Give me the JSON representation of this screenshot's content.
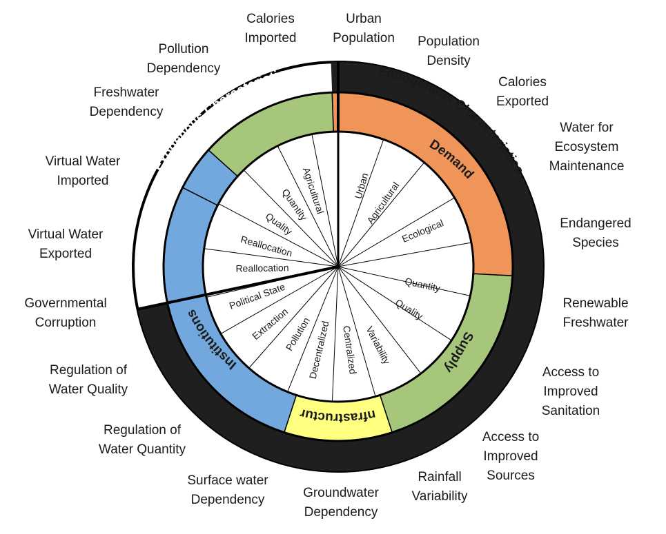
{
  "colors": {
    "demand": "#F0955A",
    "supply": "#A6C67C",
    "infrastructure": "#FFFF80",
    "institutions": "#72A8DD",
    "exogenous_band": "#1f1f1f",
    "text_dark": "#1a1a1a",
    "text_light": "#ffffff"
  },
  "ring_titles": {
    "exogenous": "Exogenous Characteristics",
    "endogenous": "Endogenous Characteristics"
  },
  "categories": {
    "demand": "Demand",
    "supply": "Supply",
    "infrastructure": "Infrastructure",
    "institutions": "Institutions"
  },
  "spokes": [
    "Urban",
    "Agricultural",
    "Ecological",
    "Quantity",
    "Quality",
    "Variability",
    "Centralized",
    "Decentralized",
    "Pollution",
    "Extraction",
    "Political State",
    "Reallocation",
    "Reallocation",
    "Quality",
    "Quantity",
    "Agricultural"
  ],
  "outer_labels": [
    {
      "lines": [
        "Urban",
        "Population"
      ]
    },
    {
      "lines": [
        "Population",
        "Density"
      ]
    },
    {
      "lines": [
        "Calories",
        "Exported"
      ]
    },
    {
      "lines": [
        "Water for",
        "Ecosystem",
        "Maintenance"
      ]
    },
    {
      "lines": [
        "Endangered",
        "Species"
      ]
    },
    {
      "lines": [
        "Renewable",
        "Freshwater"
      ]
    },
    {
      "lines": [
        "Access to",
        "Improved",
        "Sanitation"
      ]
    },
    {
      "lines": [
        "Access to",
        "Improved",
        "Sources"
      ]
    },
    {
      "lines": [
        "Rainfall",
        "Variability"
      ]
    },
    {
      "lines": [
        "Groundwater",
        "Dependency"
      ]
    },
    {
      "lines": [
        "Surface water",
        "Dependency"
      ]
    },
    {
      "lines": [
        "Regulation of",
        "Water Quantity"
      ]
    },
    {
      "lines": [
        "Regulation of",
        "Water Quality"
      ]
    },
    {
      "lines": [
        "Governmental",
        "Corruption"
      ]
    },
    {
      "lines": [
        "Virtual Water",
        "Exported"
      ]
    },
    {
      "lines": [
        "Virtual Water",
        "Imported"
      ]
    },
    {
      "lines": [
        "Freshwater",
        "Dependency"
      ]
    },
    {
      "lines": [
        "Pollution",
        "Dependency"
      ]
    },
    {
      "lines": [
        "Calories",
        "Imported"
      ]
    }
  ]
}
